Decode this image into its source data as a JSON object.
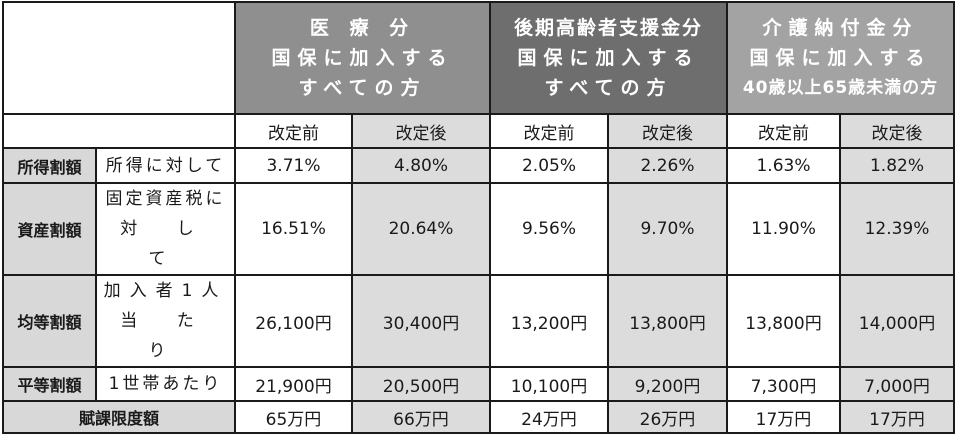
{
  "table": {
    "groups": [
      {
        "line1": "医 療 分",
        "line2": "国保に加入する",
        "line3": "すべての方"
      },
      {
        "line1": "後期高齢者支援金分",
        "line2": "国保に加入する",
        "line3": "すべての方"
      },
      {
        "line1": "介護納付金分",
        "line2": "国保に加入する",
        "line3": "40歳以上65歳未満の方"
      }
    ],
    "sub": [
      "改定前",
      "改定後",
      "改定前",
      "改定後",
      "改定前",
      "改定後"
    ],
    "rows": [
      {
        "label": "所得割額",
        "desc1": "所得に対して",
        "desc2": "",
        "values": [
          "3.71%",
          "4.80%",
          "2.05%",
          "2.26%",
          "1.63%",
          "1.82%"
        ]
      },
      {
        "label": "資産割額",
        "desc1": "固定資産税に",
        "desc2": "対 し て",
        "values": [
          "16.51%",
          "20.64%",
          "9.56%",
          "9.70%",
          "11.90%",
          "12.39%"
        ]
      },
      {
        "label": "均等割額",
        "desc1": "加入者1人",
        "desc2": "当 た り",
        "values": [
          "26,100円",
          "30,400円",
          "13,200円",
          "13,800円",
          "13,800円",
          "14,000円"
        ]
      },
      {
        "label": "平等割額",
        "desc1": "1世帯あたり",
        "desc2": "",
        "values": [
          "21,900円",
          "20,500円",
          "10,100円",
          "9,200円",
          "7,300円",
          "7,000円"
        ]
      }
    ],
    "footer": {
      "label": "賦課限度額",
      "values": [
        "65万円",
        "66万円",
        "24万円",
        "26万円",
        "17万円",
        "17万円"
      ]
    }
  }
}
